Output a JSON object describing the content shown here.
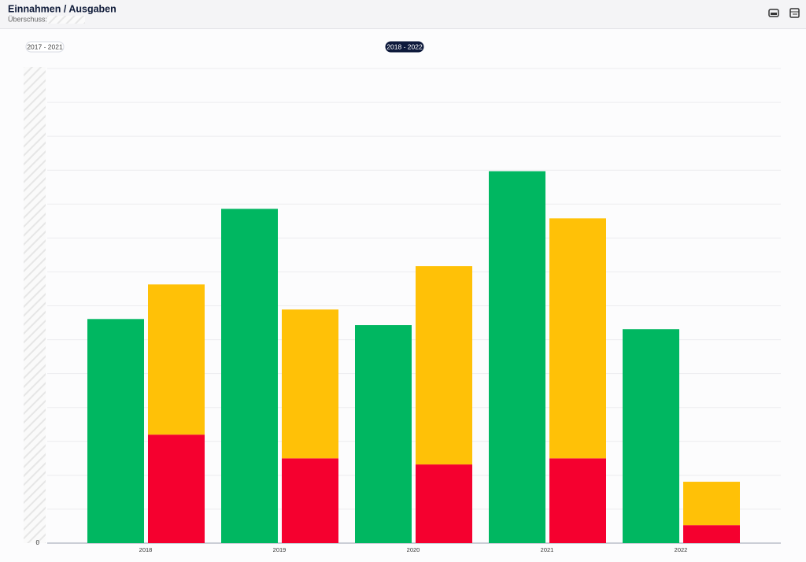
{
  "header": {
    "title": "Einnahmen / Ausgaben",
    "subtitle": "Überschuss:"
  },
  "range_buttons": [
    {
      "label": "2017 - 2021",
      "active": false
    },
    {
      "label": "2018 - 2022",
      "active": true
    }
  ],
  "chart_data": {
    "type": "bar",
    "categories": [
      "2018",
      "2019",
      "2020",
      "2021",
      "2022"
    ],
    "series": [
      {
        "color": "#00b761",
        "stack": 0,
        "values": [
          6.61,
          9.86,
          6.43,
          10.97,
          6.31
        ]
      },
      {
        "color": "#f5002f",
        "stack": 1,
        "values": [
          3.2,
          2.5,
          2.32,
          2.5,
          0.53
        ]
      },
      {
        "color": "#ffc107",
        "stack": 1,
        "values": [
          4.43,
          4.39,
          5.85,
          7.08,
          1.28
        ]
      }
    ],
    "ylim": [
      0,
      14
    ],
    "yticks": [
      0
    ],
    "grid": true
  }
}
